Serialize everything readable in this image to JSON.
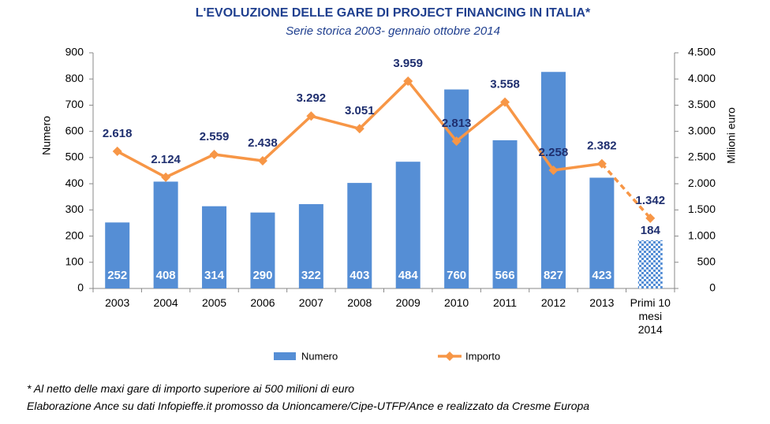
{
  "chart_data": {
    "type": "bar_line",
    "title": "L'EVOLUZIONE DELLE GARE DI PROJECT FINANCING IN ITALIA*",
    "subtitle": "Serie storica 2003- gennaio ottobre 2014",
    "y_label": "Numero",
    "y2_label": "Milioni euro",
    "categories": [
      "2003",
      "2004",
      "2005",
      "2006",
      "2007",
      "2008",
      "2009",
      "2010",
      "2011",
      "2012",
      "2013",
      "Primi 10 mesi 2014"
    ],
    "series": [
      {
        "name": "Numero",
        "type": "bar",
        "color": "#558ed5",
        "values": [
          252,
          408,
          314,
          290,
          322,
          403,
          484,
          760,
          566,
          827,
          423,
          184
        ]
      },
      {
        "name": "Importo",
        "type": "line",
        "axis": "y2",
        "color": "#f79646",
        "values": [
          2618,
          2124,
          2559,
          2438,
          3292,
          3051,
          3959,
          2813,
          3558,
          2258,
          2382,
          1342
        ],
        "value_labels": [
          "2.618",
          "2.124",
          "2.559",
          "2.438",
          "3.292",
          "3.051",
          "3.959",
          "2.813",
          "3.558",
          "2.258",
          "2.382",
          "1.342"
        ]
      }
    ],
    "ylim": [
      0,
      900
    ],
    "yticks": [
      0,
      100,
      200,
      300,
      400,
      500,
      600,
      700,
      800,
      900
    ],
    "y2lim": [
      0,
      4500
    ],
    "y2ticks": [
      0,
      500,
      {
        "value": 1000,
        "label": "1.000"
      },
      {
        "value": 1500,
        "label": "1.500"
      },
      {
        "value": 2000,
        "label": "2.000"
      },
      {
        "value": 2500,
        "label": "2.500"
      },
      {
        "value": 3000,
        "label": "3.000"
      },
      {
        "value": 3500,
        "label": "3.500"
      },
      {
        "value": 4000,
        "label": "4.000"
      },
      {
        "value": 4500,
        "label": "4.500"
      }
    ],
    "legend": "bottom",
    "notes": [
      "* Al netto delle maxi gare di importo superiore ai 500 milioni di euro",
      "Elaborazione Ance su dati  Infopieffe.it promosso da Unioncamere/Cipe-UTFP/Ance e realizzato da Cresme Europa"
    ]
  }
}
